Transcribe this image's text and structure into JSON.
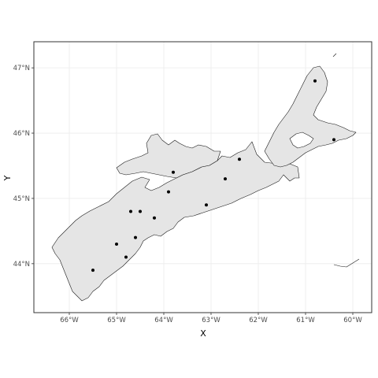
{
  "chart_data": {
    "type": "scatter",
    "title": "",
    "xlabel": "X",
    "ylabel": "Y",
    "xlim": [
      -66.75,
      -59.6
    ],
    "ylim": [
      43.25,
      47.4
    ],
    "grid": true,
    "x_ticks": [
      {
        "value": -66,
        "label": "66°W"
      },
      {
        "value": -65,
        "label": "65°W"
      },
      {
        "value": -64,
        "label": "64°W"
      },
      {
        "value": -63,
        "label": "63°W"
      },
      {
        "value": -62,
        "label": "62°W"
      },
      {
        "value": -61,
        "label": "61°W"
      },
      {
        "value": -60,
        "label": "60°W"
      }
    ],
    "y_ticks": [
      {
        "value": 44,
        "label": "44°N"
      },
      {
        "value": 45,
        "label": "45°N"
      },
      {
        "value": 46,
        "label": "46°N"
      },
      {
        "value": 47,
        "label": "47°N"
      }
    ],
    "points": [
      {
        "lon": -65.5,
        "lat": 43.9
      },
      {
        "lon": -65.0,
        "lat": 44.3
      },
      {
        "lon": -64.8,
        "lat": 44.1
      },
      {
        "lon": -64.6,
        "lat": 44.4
      },
      {
        "lon": -64.7,
        "lat": 44.8
      },
      {
        "lon": -64.5,
        "lat": 44.8
      },
      {
        "lon": -64.2,
        "lat": 44.7
      },
      {
        "lon": -63.9,
        "lat": 45.1
      },
      {
        "lon": -63.8,
        "lat": 45.4
      },
      {
        "lon": -63.1,
        "lat": 44.9
      },
      {
        "lon": -62.7,
        "lat": 45.3
      },
      {
        "lon": -62.4,
        "lat": 45.6
      },
      {
        "lon": -60.8,
        "lat": 46.8
      },
      {
        "lon": -60.4,
        "lat": 45.9
      }
    ],
    "land_fill": "#e5e5e5",
    "coast_color": "#1a1a1a",
    "grid_color": "#ebebeb",
    "point_color": "#000000"
  }
}
